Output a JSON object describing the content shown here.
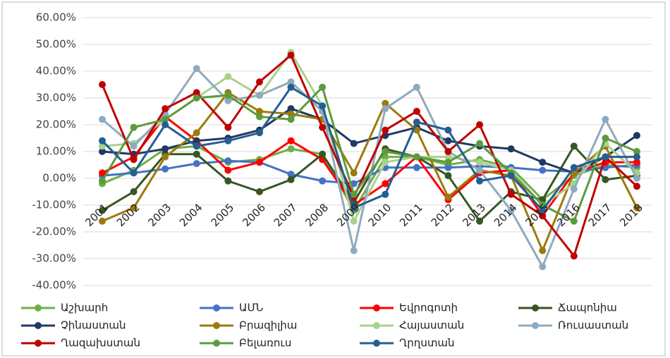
{
  "chart_data": {
    "type": "line",
    "categories": [
      "2001",
      "2002",
      "2003",
      "2004",
      "2005",
      "2006",
      "2007",
      "2008",
      "2009",
      "2010",
      "2011",
      "2012",
      "2013",
      "2014",
      "2015",
      "2016",
      "2017",
      "2018"
    ],
    "ylim": [
      -40,
      60
    ],
    "yticks": [
      {
        "value": -40,
        "label": "-40.00%"
      },
      {
        "value": -30,
        "label": "-30.00%"
      },
      {
        "value": -20,
        "label": "-20.00%"
      },
      {
        "value": -10,
        "label": "-10.00%"
      },
      {
        "value": 0,
        "label": "0.00%"
      },
      {
        "value": 10,
        "label": "10.00%"
      },
      {
        "value": 20,
        "label": "20.00%"
      },
      {
        "value": 30,
        "label": "30.00%"
      },
      {
        "value": 40,
        "label": "40.00%"
      },
      {
        "value": 50,
        "label": "50.00%"
      },
      {
        "value": 60,
        "label": "60.00%"
      }
    ],
    "grid": true,
    "legend": "bottom",
    "series": [
      {
        "name": "Աշխարհ",
        "color": "#70ad47",
        "values": [
          -2,
          3,
          11,
          12,
          6,
          7,
          11,
          9,
          -12,
          8,
          8,
          5,
          7,
          4,
          -8,
          1,
          5,
          4
        ]
      },
      {
        "name": "ԱՄՆ",
        "color": "#4472c4",
        "values": [
          1,
          2,
          3.5,
          5.5,
          6.5,
          6,
          1.5,
          -1,
          -2,
          4,
          4,
          4,
          4.5,
          4,
          3,
          2.5,
          4,
          5
        ]
      },
      {
        "name": "Եվրոգոտի",
        "color": "#ff0000",
        "values": [
          2,
          8,
          23,
          14,
          3,
          6,
          14,
          7,
          -10,
          -2,
          8,
          -8,
          2,
          3,
          -14,
          2,
          6,
          6
        ]
      },
      {
        "name": "Ճապոնիա",
        "color": "#375623",
        "values": [
          -12,
          -5,
          9,
          9,
          -1,
          -5,
          -0.5,
          9,
          -9,
          11,
          8,
          1,
          -16,
          -5,
          -8,
          12,
          -0.5,
          1
        ]
      },
      {
        "name": "Չինաստան",
        "color": "#203864",
        "values": [
          10,
          9,
          11,
          14,
          15,
          18,
          26,
          22,
          13,
          16,
          19,
          14,
          12,
          11,
          6,
          2,
          8,
          16
        ]
      },
      {
        "name": "Բրազիլիա",
        "color": "#9c7a0c",
        "values": [
          -16,
          -11,
          8,
          17,
          32,
          25,
          24,
          22,
          2,
          28,
          18,
          -7,
          3,
          1,
          -27,
          2,
          12,
          -11
        ]
      },
      {
        "name": "Հայաստան",
        "color": "#a9d18e",
        "values": [
          12,
          13,
          22,
          30,
          38,
          31,
          47,
          27,
          -16,
          6,
          8,
          8,
          6,
          3,
          -10,
          -2,
          13,
          2
        ]
      },
      {
        "name": "Ռուսաստան",
        "color": "#8faabe",
        "values": [
          22,
          12,
          24,
          41,
          29,
          31,
          36,
          25,
          -27,
          26,
          34,
          10,
          3,
          -12,
          -33,
          -4,
          22,
          0
        ]
      },
      {
        "name": "Ղազախստան",
        "color": "#c00000",
        "values": [
          35,
          7,
          26,
          32,
          19,
          36,
          46,
          19,
          -7,
          18,
          25,
          10,
          20,
          -6,
          -14,
          -29,
          8,
          -3
        ]
      },
      {
        "name": "Բելառուս",
        "color": "#5b9b3e",
        "values": [
          -1,
          19,
          22,
          30,
          31,
          23,
          22,
          34,
          -6,
          10,
          8,
          6,
          13,
          2,
          -10,
          -16,
          15,
          10
        ]
      },
      {
        "name": "Ղրղստան",
        "color": "#255e91",
        "values": [
          14,
          2,
          20,
          12,
          14,
          17,
          34,
          27,
          -11,
          -6,
          21,
          18,
          -1,
          1,
          -12,
          4,
          8,
          8
        ]
      }
    ]
  }
}
